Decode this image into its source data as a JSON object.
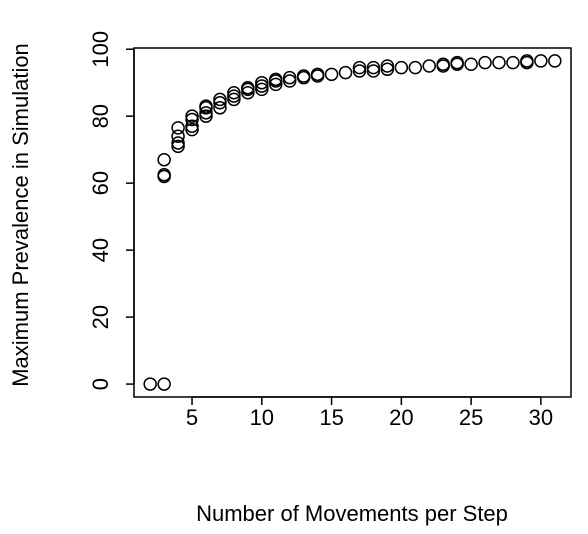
{
  "chart_data": {
    "type": "scatter",
    "x_label": "Number of Movements per Step",
    "y_label": "Maximum Prevalence in Simulation",
    "x": [
      2,
      3,
      3,
      3,
      3,
      4,
      4,
      4,
      4,
      5,
      5,
      5,
      5,
      6,
      6,
      6,
      6,
      7,
      7,
      7,
      8,
      8,
      8,
      9,
      9,
      9,
      10,
      10,
      10,
      11,
      11,
      11,
      12,
      12,
      13,
      13,
      14,
      14,
      15,
      16,
      17,
      17,
      18,
      18,
      19,
      19,
      20,
      21,
      22,
      23,
      23,
      24,
      24,
      25,
      26,
      27,
      28,
      29,
      29,
      30,
      31
    ],
    "values": [
      0,
      0,
      62,
      62.5,
      67,
      71,
      72,
      74,
      76.5,
      76,
      77,
      79,
      80,
      80,
      81,
      82.5,
      83,
      82.5,
      84,
      85,
      85,
      86,
      87,
      87,
      88,
      88.5,
      88,
      89,
      90,
      89.5,
      90.5,
      91,
      90.5,
      91.5,
      91.5,
      92,
      92,
      92.5,
      92.5,
      93,
      93.5,
      94.5,
      93.5,
      94.5,
      94,
      95,
      94.5,
      94.5,
      95,
      95,
      95.5,
      95.5,
      96,
      95.5,
      96,
      96,
      96,
      96,
      96.5,
      96.5,
      96.5
    ],
    "color": "#000000",
    "xlim": [
      0.84,
      32.16
    ],
    "ylim": [
      -3.86,
      100.36
    ],
    "xticks": [
      5,
      10,
      15,
      20,
      25,
      30
    ],
    "yticks": [
      0,
      20,
      40,
      60,
      80,
      100
    ]
  }
}
